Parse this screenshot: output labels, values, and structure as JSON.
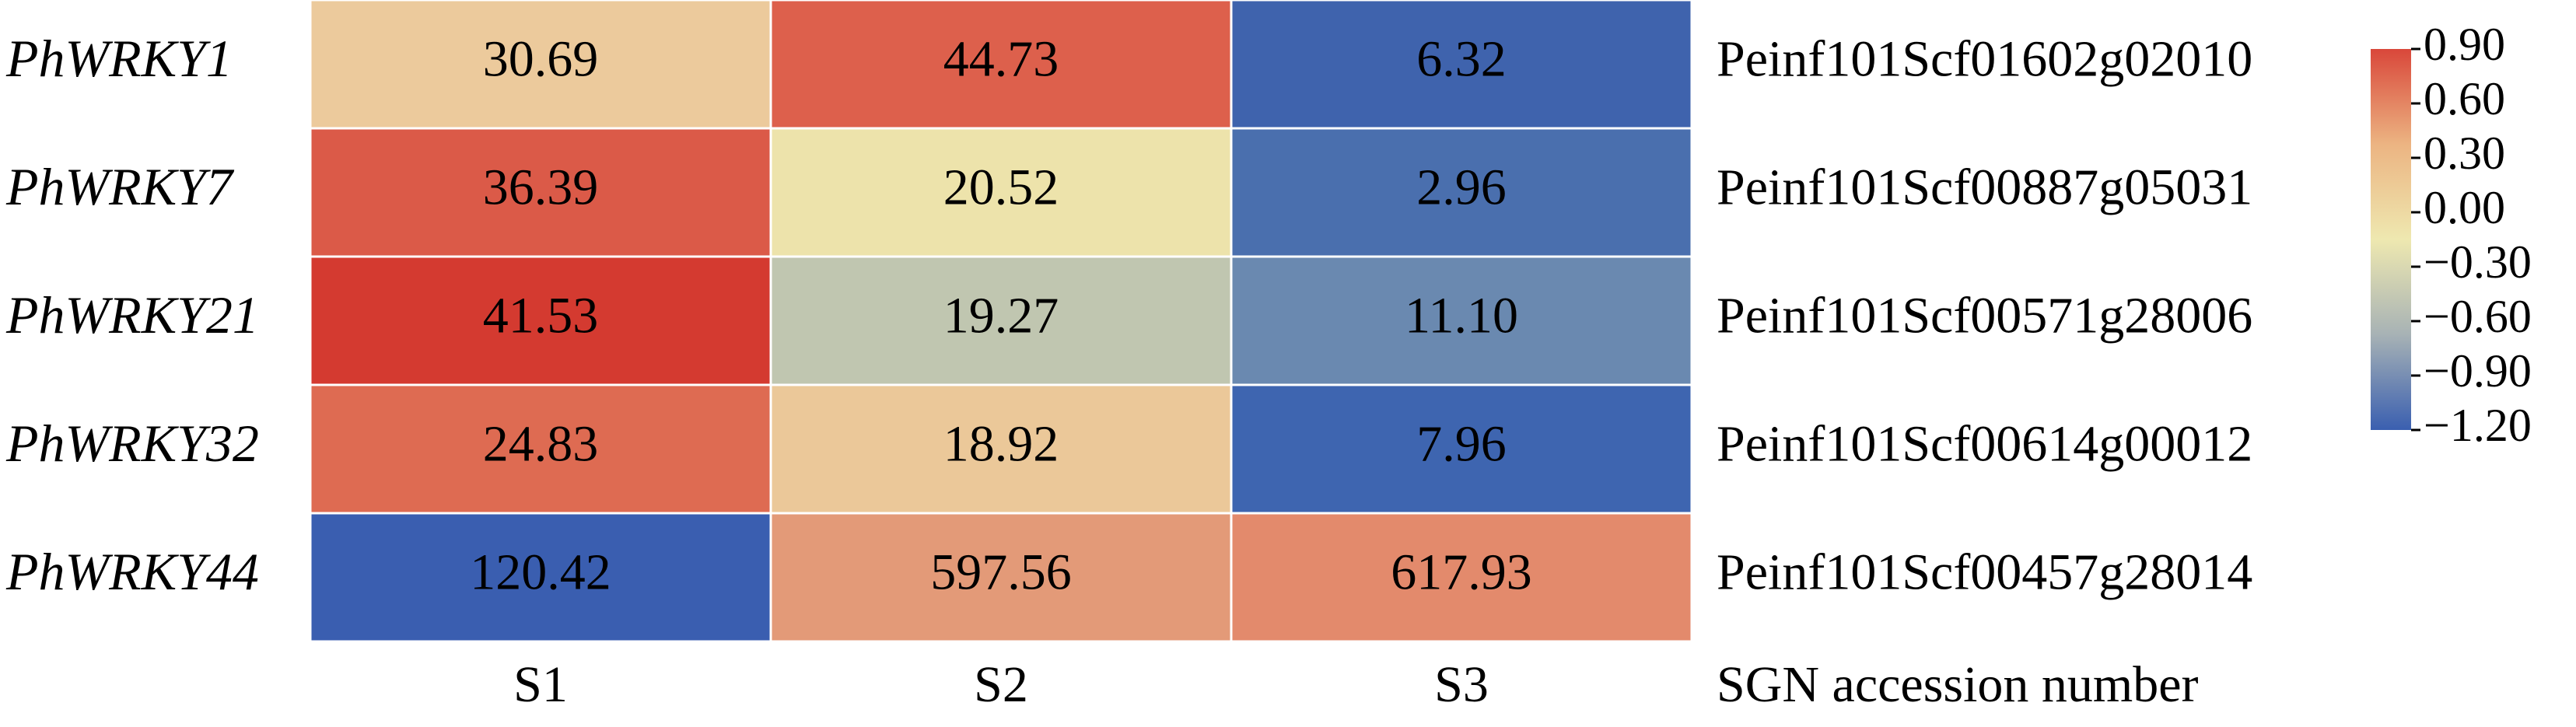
{
  "chart_data": {
    "type": "heatmap",
    "rows": [
      "PhWRKY1",
      "PhWRKY7",
      "PhWRKY21",
      "PhWRKY32",
      "PhWRKY44"
    ],
    "columns": [
      "S1",
      "S2",
      "S3"
    ],
    "accessions": [
      "Peinf101Scf01602g02010",
      "Peinf101Scf00887g05031",
      "Peinf101Scf00571g28006",
      "Peinf101Scf00614g00012",
      "Peinf101Scf00457g28014"
    ],
    "accession_title": "SGN accession number",
    "values": [
      [
        30.69,
        44.73,
        6.32
      ],
      [
        36.39,
        20.52,
        2.96
      ],
      [
        41.53,
        19.27,
        11.1
      ],
      [
        24.83,
        18.92,
        7.96
      ],
      [
        120.42,
        597.56,
        617.93
      ]
    ],
    "value_labels": [
      [
        "30.69",
        "44.73",
        "6.32"
      ],
      [
        "36.39",
        "20.52",
        "2.96"
      ],
      [
        "41.53",
        "19.27",
        "11.10"
      ],
      [
        "24.83",
        "18.92",
        "7.96"
      ],
      [
        "120.42",
        "597.56",
        "617.93"
      ]
    ],
    "colors": [
      [
        "#ecca9c",
        "#dd604c",
        "#3f63ad"
      ],
      [
        "#db5a48",
        "#ede3ab",
        "#4a6fae"
      ],
      [
        "#d43a30",
        "#c0c6b0",
        "#6a89b0"
      ],
      [
        "#de6b52",
        "#ebc899",
        "#3e65b0"
      ],
      [
        "#3a5eb0",
        "#e39a78",
        "#e38a6c"
      ]
    ],
    "colorbar": {
      "lim": [
        -1.2,
        0.9
      ],
      "ticks": [
        {
          "value": 0.9,
          "label": "0.90"
        },
        {
          "value": 0.6,
          "label": "0.60"
        },
        {
          "value": 0.3,
          "label": "0.30"
        },
        {
          "value": 0,
          "label": "0.00"
        },
        {
          "value": -0.3,
          "label": "−0.30"
        },
        {
          "value": -0.6,
          "label": "−0.60"
        },
        {
          "value": -0.9,
          "label": "−0.90"
        },
        {
          "value": -1.2,
          "label": "−1.20"
        }
      ],
      "colors": [
        "#d9473a",
        "#ecb482",
        "#eee8b0",
        "#a7b2b5",
        "#3a5fb0"
      ]
    }
  }
}
